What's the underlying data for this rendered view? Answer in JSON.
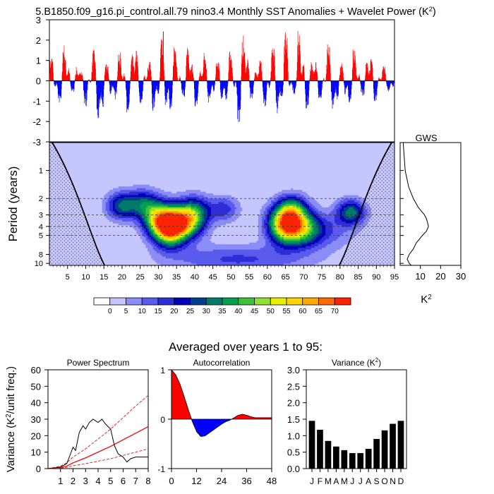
{
  "title": "5.B1850.f09_g16.pi_control.all.79 nino3.4 Monthly SST Anomalies + Wavelet Power (K",
  "title_sup": "2",
  "title_close": ")",
  "subtitle": "Averaged over years 1 to 95:",
  "colors": {
    "positive": "#ff0000",
    "negative": "#0000ff",
    "bar": "#000000",
    "spec_fit": "#e41a1c"
  },
  "chart_data": [
    {
      "id": "timeseries",
      "type": "bar",
      "x_range": [
        0,
        95
      ],
      "ylim": [
        -3,
        3
      ],
      "yticks": [
        "3",
        "2",
        "1",
        "0",
        "-1",
        "-2",
        "-3"
      ],
      "n_months": 1140,
      "envelope_x_years": [
        0,
        3,
        6,
        9,
        12,
        14,
        16,
        18,
        21,
        24,
        27,
        30,
        32,
        34,
        37,
        40,
        43,
        46,
        49,
        52,
        54,
        56,
        59,
        62,
        65,
        68,
        71,
        74,
        77,
        80,
        83,
        86,
        89,
        92,
        95
      ],
      "envelope_positive": [
        1.0,
        2.1,
        1.3,
        0.5,
        1.6,
        1.0,
        0.9,
        1.6,
        1.2,
        1.8,
        0.9,
        1.6,
        3.0,
        1.9,
        2.2,
        0.8,
        1.6,
        0.9,
        1.5,
        1.9,
        2.4,
        0.9,
        1.1,
        1.8,
        3.0,
        2.6,
        1.6,
        1.0,
        2.1,
        0.7,
        1.9,
        1.0,
        1.4,
        0.7,
        0.6
      ],
      "envelope_negative": [
        -0.7,
        -1.2,
        -0.5,
        -1.0,
        -1.8,
        -2.3,
        -1.6,
        -0.9,
        -1.7,
        -0.7,
        -2.1,
        -1.3,
        -2.5,
        -1.1,
        -0.8,
        -1.4,
        -1.0,
        -1.6,
        -0.9,
        -2.5,
        -1.4,
        -0.8,
        -1.5,
        -1.9,
        -1.1,
        -0.6,
        -1.6,
        -1.0,
        -1.3,
        -1.8,
        -1.0,
        -0.7,
        -1.2,
        -0.5,
        -0.6
      ]
    },
    {
      "id": "wavelet",
      "type": "heatmap",
      "ylabel": "Period (years)",
      "xticks": [
        "5",
        "10",
        "15",
        "20",
        "25",
        "30",
        "35",
        "40",
        "45",
        "50",
        "55",
        "60",
        "65",
        "70",
        "75",
        "80",
        "85",
        "90",
        "95"
      ],
      "yticks": [
        "1",
        "2",
        "3",
        "4",
        "5",
        "8",
        "10"
      ],
      "period_range": [
        0.5,
        10.5
      ],
      "dashed_periods": [
        2,
        3,
        4,
        5
      ],
      "colorbar_levels": [
        "0",
        "5",
        "10",
        "15",
        "20",
        "25",
        "30",
        "35",
        "40",
        "45",
        "50",
        "55",
        "60",
        "65",
        "70"
      ],
      "colorbar_colors": [
        "#ffffff",
        "#c6c6ff",
        "#8c8cf7",
        "#5a5aec",
        "#2e2ed8",
        "#0000b8",
        "#00408c",
        "#007a6a",
        "#00a050",
        "#3cc038",
        "#90e030",
        "#e8f000",
        "#ffd400",
        "#ffa800",
        "#ff6a00",
        "#ff2200"
      ],
      "power_centers": [
        {
          "x": 33,
          "period": 4.0,
          "power": 75,
          "spread_x": 3.2,
          "spread_p": 0.32
        },
        {
          "x": 38,
          "period": 3.6,
          "power": 42,
          "spread_x": 3.5,
          "spread_p": 0.28
        },
        {
          "x": 29,
          "period": 3.2,
          "power": 30,
          "spread_x": 3.0,
          "spread_p": 0.28
        },
        {
          "x": 20,
          "period": 2.4,
          "power": 30,
          "spread_x": 3.0,
          "spread_p": 0.24
        },
        {
          "x": 26,
          "period": 2.2,
          "power": 22,
          "spread_x": 3.0,
          "spread_p": 0.24
        },
        {
          "x": 40,
          "period": 2.6,
          "power": 22,
          "spread_x": 3.0,
          "spread_p": 0.26
        },
        {
          "x": 48,
          "period": 2.6,
          "power": 18,
          "spread_x": 3.0,
          "spread_p": 0.22
        },
        {
          "x": 65,
          "period": 3.8,
          "power": 62,
          "spread_x": 3.4,
          "spread_p": 0.32
        },
        {
          "x": 70,
          "period": 4.2,
          "power": 28,
          "spread_x": 3.5,
          "spread_p": 0.3
        },
        {
          "x": 67,
          "period": 2.6,
          "power": 26,
          "spread_x": 3.0,
          "spread_p": 0.25
        },
        {
          "x": 83,
          "period": 2.8,
          "power": 32,
          "spread_x": 2.8,
          "spread_p": 0.22
        },
        {
          "x": 52,
          "period": 9.0,
          "power": 16,
          "spread_x": 14.0,
          "spread_p": 0.25
        },
        {
          "x": 75,
          "period": 4.5,
          "power": 14,
          "spread_x": 6.0,
          "spread_p": 0.3
        }
      ]
    },
    {
      "id": "gws",
      "type": "line",
      "title": "GWS",
      "xlabel": "K",
      "xlabel_sup": "2",
      "xticks": [
        "10",
        "20",
        "30"
      ],
      "xlim": [
        0,
        30
      ],
      "periods": [
        0.5,
        1.0,
        1.5,
        2.0,
        2.5,
        3.0,
        3.3,
        3.6,
        4.0,
        4.5,
        5.0,
        5.5,
        6.0,
        7.0,
        8.0,
        9.0,
        10.0,
        10.5
      ],
      "values": [
        1.5,
        2.5,
        4.2,
        6.5,
        9.0,
        12.0,
        13.0,
        13.5,
        14.0,
        13.0,
        11.0,
        9.5,
        8.0,
        6.5,
        4.5,
        3.5,
        4.5,
        5.5
      ]
    },
    {
      "id": "power_spectrum",
      "type": "line",
      "title": "Power Spectrum",
      "ylabel": "Variance (K",
      "ylabel_sup": "2",
      "ylabel_tail": "/unit freq.)",
      "xticks": [
        "1",
        "2",
        "3",
        "4",
        "5",
        "6",
        "7",
        "8"
      ],
      "yticks": [
        "0",
        "10",
        "20",
        "30",
        "40",
        "50",
        "60"
      ],
      "xlim": [
        0,
        8
      ],
      "ylim": [
        0,
        60
      ],
      "x": [
        0.0,
        0.5,
        1.0,
        1.5,
        1.8,
        2.0,
        2.2,
        2.5,
        2.8,
        3.0,
        3.3,
        3.6,
        3.8,
        4.0,
        4.3,
        4.6,
        5.0,
        5.3,
        5.6,
        6.0,
        6.3,
        6.6,
        7.0,
        7.5,
        8.0
      ],
      "values": [
        0,
        0.3,
        1.0,
        3.0,
        9.0,
        13.0,
        11.0,
        22.0,
        26.0,
        24.0,
        28.0,
        30.0,
        29.0,
        28.0,
        30.0,
        27.0,
        24.0,
        14.0,
        9.0,
        7.0,
        4.0,
        6.0,
        7.0,
        7.0,
        7.0
      ],
      "fit_mid": [
        0,
        0.6,
        1.5,
        3.5,
        6.5,
        10.0,
        13.5,
        17.5,
        21.5,
        25.5
      ],
      "fit_upper": [
        0,
        1.5,
        3.5,
        7.0,
        12.0,
        18.0,
        24.0,
        31.0,
        38.0,
        44.5
      ],
      "fit_lower": [
        0,
        0.3,
        0.8,
        1.7,
        3.0,
        4.5,
        6.0,
        8.0,
        10.0,
        12.0
      ],
      "fit_x": [
        0,
        1,
        1.5,
        2,
        3,
        4,
        5,
        6,
        7,
        8
      ]
    },
    {
      "id": "autocorrelation",
      "type": "area",
      "title": "Autocorrelation",
      "xticks": [
        "0",
        "12",
        "24",
        "36",
        "48"
      ],
      "yticks": [
        "1",
        "0",
        "-1"
      ],
      "xlim": [
        0,
        48
      ],
      "ylim": [
        -1,
        1
      ],
      "lags": [
        0,
        2,
        4,
        6,
        8,
        10,
        12,
        14,
        16,
        18,
        20,
        22,
        24,
        26,
        28,
        30,
        32,
        34,
        36,
        38,
        40,
        42,
        44,
        46,
        48
      ],
      "values": [
        1.0,
        0.9,
        0.72,
        0.47,
        0.2,
        -0.05,
        -0.25,
        -0.35,
        -0.34,
        -0.28,
        -0.22,
        -0.16,
        -0.1,
        -0.05,
        -0.02,
        0.03,
        0.08,
        0.1,
        0.08,
        0.05,
        0.03,
        0.03,
        0.03,
        0.03,
        0.03
      ]
    },
    {
      "id": "variance",
      "type": "bar",
      "title": "Variance (K",
      "title_sup": "2",
      "title_close": ")",
      "categories": [
        "J",
        "F",
        "M",
        "A",
        "M",
        "J",
        "J",
        "A",
        "S",
        "O",
        "N",
        "D"
      ],
      "yticks": [
        "0.0",
        "0.5",
        "1.0",
        "1.5",
        "2.0",
        "2.5",
        "3.0"
      ],
      "ylim": [
        0,
        3
      ],
      "values": [
        1.45,
        1.18,
        0.84,
        0.67,
        0.56,
        0.47,
        0.47,
        0.6,
        0.9,
        1.16,
        1.36,
        1.45
      ]
    }
  ]
}
